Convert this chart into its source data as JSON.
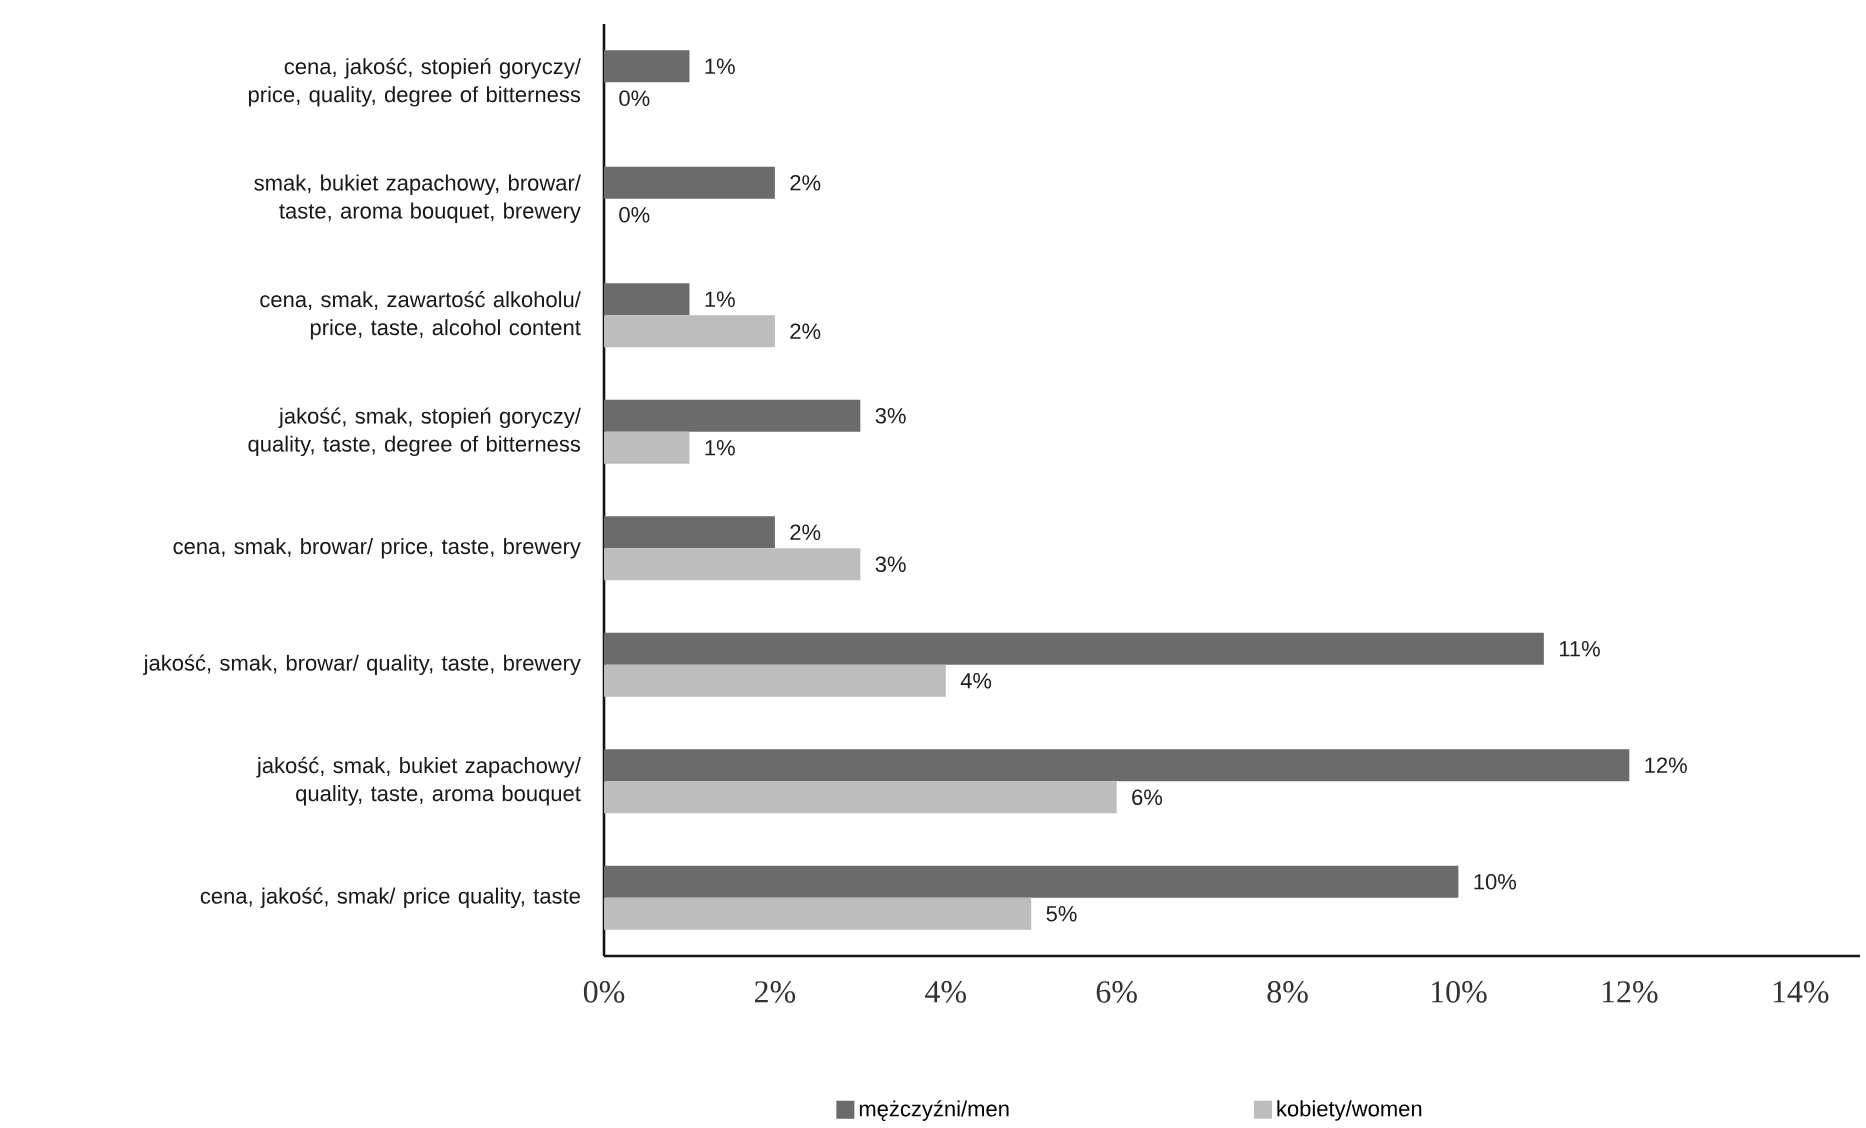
{
  "chart_data": {
    "type": "bar",
    "orientation": "horizontal",
    "categories": [
      "cena, jakość, stopień goryczy/ price, quality, degree of bitterness",
      "smak, bukiet zapachowy, browar/ taste, aroma bouquet, brewery",
      "cena, smak, zawartość alkoholu/ price, taste, alcohol content",
      "jakość, smak, stopień goryczy/ quality, taste, degree of bitterness",
      "cena, smak, browar/ price, taste, brewery",
      "jakość, smak, browar/ quality, taste, brewery",
      "jakość, smak, bukiet zapachowy/ quality, taste, aroma bouquet",
      "cena, jakość, smak/ price quality, taste"
    ],
    "series": [
      {
        "name": "mężczyźni/men",
        "color": "#6b6b6b",
        "values": [
          1,
          2,
          1,
          3,
          2,
          11,
          12,
          10
        ],
        "value_labels": [
          "1%",
          "2%",
          "1%",
          "3%",
          "2%",
          "11%",
          "12%",
          "10%"
        ]
      },
      {
        "name": "kobiety/women",
        "color": "#bdbdbd",
        "values": [
          0,
          0,
          2,
          1,
          3,
          4,
          6,
          5
        ],
        "value_labels": [
          "0%",
          "0%",
          "2%",
          "1%",
          "3%",
          "4%",
          "6%",
          "5%"
        ]
      }
    ],
    "xlim": [
      0,
      14.7
    ],
    "xticks": [
      {
        "value": 0,
        "label": "0%"
      },
      {
        "value": 2,
        "label": "2%"
      },
      {
        "value": 4,
        "label": "4%"
      },
      {
        "value": 6,
        "label": "6%"
      },
      {
        "value": 8,
        "label": "8%"
      },
      {
        "value": 10,
        "label": "10%"
      },
      {
        "value": 12,
        "label": "12%"
      },
      {
        "value": 14,
        "label": "14%"
      }
    ],
    "legend": "bottom"
  }
}
